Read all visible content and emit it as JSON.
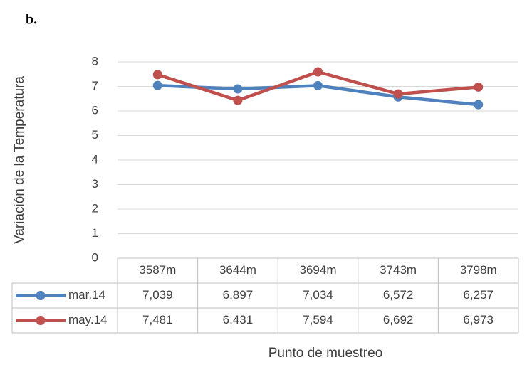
{
  "panel_label": "b.",
  "chart_data": {
    "type": "line",
    "ylabel": "Variación de la Temperatura",
    "xlabel": "Punto de muestreo",
    "categories": [
      "3587m",
      "3644m",
      "3694m",
      "3743m",
      "3798m"
    ],
    "series": [
      {
        "name": "mar.14",
        "color": "#4f81bd",
        "values": [
          7.039,
          6.897,
          7.034,
          6.572,
          6.257
        ],
        "value_labels": [
          "7,039",
          "6,897",
          "7,034",
          "6,572",
          "6,257"
        ]
      },
      {
        "name": "may.14",
        "color": "#c0504d",
        "values": [
          7.481,
          6.431,
          7.594,
          6.692,
          6.973
        ],
        "value_labels": [
          "7,481",
          "6,431",
          "7,594",
          "6,692",
          "6,973"
        ]
      }
    ],
    "ylim": [
      0,
      8
    ],
    "yticks": [
      0,
      1,
      2,
      3,
      4,
      5,
      6,
      7,
      8
    ],
    "grid": true,
    "legend": "table"
  }
}
